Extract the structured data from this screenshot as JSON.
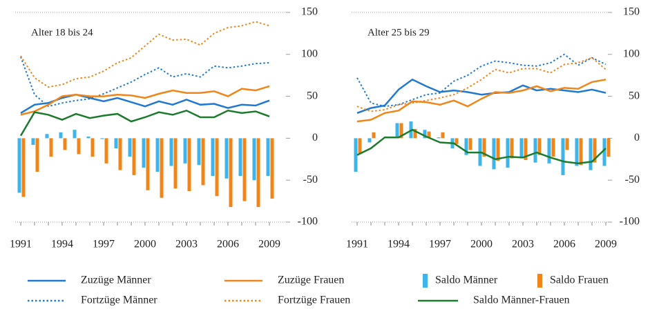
{
  "chart_data": [
    {
      "type": "combo",
      "title": "Alter 18 bis 24",
      "x": [
        1991,
        1992,
        1993,
        1994,
        1995,
        1996,
        1997,
        1998,
        1999,
        2000,
        2001,
        2002,
        2003,
        2004,
        2005,
        2006,
        2007,
        2008,
        2009
      ],
      "xticks": [
        1991,
        1994,
        1997,
        2000,
        2003,
        2006,
        2009
      ],
      "ylim": [
        -100,
        150
      ],
      "yticks": [
        -100,
        -50,
        0,
        50,
        100,
        150
      ],
      "series": [
        {
          "name": "Zuzüge Männer",
          "type": "line",
          "style": "solid",
          "color": "#1f78d1",
          "values": [
            30,
            40,
            42,
            48,
            52,
            48,
            44,
            48,
            43,
            38,
            44,
            40,
            46,
            40,
            41,
            36,
            40,
            39,
            45
          ]
        },
        {
          "name": "Fortzüge Männer",
          "type": "line",
          "style": "dotted",
          "color": "#1f78d1",
          "values": [
            97,
            52,
            38,
            42,
            45,
            47,
            53,
            60,
            67,
            76,
            84,
            73,
            77,
            73,
            86,
            84,
            86,
            89,
            90
          ]
        },
        {
          "name": "Zuzüge Frauen",
          "type": "line",
          "style": "solid",
          "color": "#f08519",
          "values": [
            28,
            32,
            40,
            50,
            52,
            50,
            50,
            52,
            51,
            48,
            53,
            57,
            54,
            54,
            56,
            50,
            59,
            57,
            62
          ]
        },
        {
          "name": "Fortzüge Frauen",
          "type": "line",
          "style": "dotted",
          "color": "#f08519",
          "values": [
            98,
            72,
            61,
            64,
            71,
            73,
            80,
            90,
            96,
            110,
            124,
            117,
            118,
            111,
            125,
            132,
            134,
            139,
            134
          ]
        },
        {
          "name": "Saldo Männer",
          "type": "bar",
          "color": "#3db5ea",
          "values": [
            -65,
            -8,
            5,
            7,
            10,
            2,
            -1,
            -12,
            -22,
            -35,
            -40,
            -33,
            -30,
            -32,
            -45,
            -48,
            -45,
            -50,
            -45
          ]
        },
        {
          "name": "Saldo Frauen",
          "type": "bar",
          "color": "#f08519",
          "values": [
            -70,
            -40,
            -22,
            -14,
            -19,
            -22,
            -30,
            -38,
            -44,
            -62,
            -71,
            -60,
            -63,
            -56,
            -69,
            -82,
            -75,
            -82,
            -72
          ]
        },
        {
          "name": "Saldo Männer-Frauen",
          "type": "line",
          "style": "solid",
          "color": "#1b7a2c",
          "values": [
            3,
            31,
            28,
            22,
            29,
            24,
            27,
            29,
            20,
            25,
            31,
            28,
            33,
            25,
            25,
            33,
            30,
            32,
            26
          ]
        }
      ]
    },
    {
      "type": "combo",
      "title": "Alter 25 bis 29",
      "x": [
        1991,
        1992,
        1993,
        1994,
        1995,
        1996,
        1997,
        1998,
        1999,
        2000,
        2001,
        2002,
        2003,
        2004,
        2005,
        2006,
        2007,
        2008,
        2009
      ],
      "xticks": [
        1991,
        1994,
        1997,
        2000,
        2003,
        2006,
        2009
      ],
      "ylim": [
        -100,
        150
      ],
      "yticks": [
        -100,
        -50,
        0,
        50,
        100,
        150
      ],
      "series": [
        {
          "name": "Zuzüge Männer",
          "type": "line",
          "style": "solid",
          "color": "#1f78d1",
          "values": [
            30,
            36,
            39,
            58,
            70,
            62,
            55,
            57,
            55,
            52,
            54,
            55,
            63,
            57,
            59,
            57,
            55,
            58,
            54
          ]
        },
        {
          "name": "Fortzüge Männer",
          "type": "line",
          "style": "dotted",
          "color": "#1f78d1",
          "values": [
            72,
            42,
            38,
            40,
            46,
            52,
            54,
            68,
            75,
            86,
            92,
            90,
            87,
            86,
            90,
            100,
            87,
            96,
            88
          ]
        },
        {
          "name": "Zuzüge Frauen",
          "type": "line",
          "style": "solid",
          "color": "#f08519",
          "values": [
            20,
            22,
            30,
            33,
            44,
            43,
            40,
            45,
            38,
            47,
            55,
            54,
            57,
            62,
            56,
            60,
            59,
            67,
            70
          ]
        },
        {
          "name": "Fortzüge Frauen",
          "type": "line",
          "style": "dotted",
          "color": "#f08519",
          "values": [
            38,
            32,
            34,
            40,
            42,
            45,
            48,
            52,
            60,
            70,
            82,
            78,
            83,
            83,
            78,
            88,
            90,
            96,
            82
          ]
        },
        {
          "name": "Saldo Männer",
          "type": "bar",
          "color": "#3db5ea",
          "values": [
            -40,
            -5,
            0,
            18,
            20,
            10,
            1,
            -12,
            -20,
            -33,
            -37,
            -35,
            -24,
            -29,
            -30,
            -44,
            -33,
            -38,
            -33
          ]
        },
        {
          "name": "Saldo Frauen",
          "type": "bar",
          "color": "#f08519",
          "values": [
            -18,
            7,
            0,
            18,
            11,
            8,
            7,
            -7,
            -14,
            -22,
            -27,
            -24,
            -26,
            -20,
            -22,
            -14,
            -32,
            -29,
            -22
          ]
        },
        {
          "name": "Saldo Männer-Frauen",
          "type": "line",
          "style": "solid",
          "color": "#1b7a2c",
          "values": [
            -20,
            -12,
            1,
            1,
            10,
            2,
            -5,
            -6,
            -17,
            -17,
            -25,
            -22,
            -23,
            -17,
            -23,
            -28,
            -30,
            -28,
            -12
          ]
        }
      ]
    }
  ]
}
